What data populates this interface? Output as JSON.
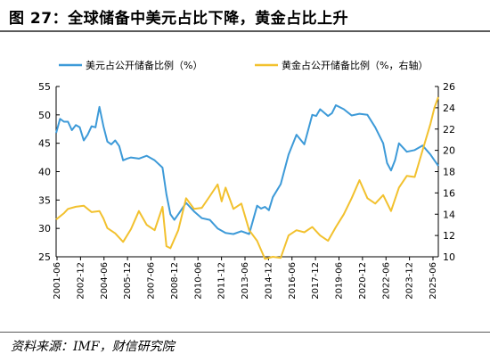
{
  "figure": {
    "title": "图 27：全球储备中美元占比下降，黄金占比上升",
    "source": "资料来源：IMF，财信研究院"
  },
  "chart_data": {
    "type": "line",
    "legend_position": "top",
    "grid": false,
    "x_tick_labels": [
      "2001-06",
      "2002-12",
      "2004-06",
      "2005-12",
      "2007-06",
      "2008-12",
      "2010-06",
      "2011-12",
      "2013-06",
      "2014-12",
      "2016-06",
      "2017-12",
      "2019-06",
      "2020-12",
      "2022-06",
      "2023-12",
      "2025-06"
    ],
    "x_range": [
      2001.25,
      2025.5
    ],
    "y_left": {
      "min": 25,
      "max": 55,
      "ticks": [
        25,
        30,
        35,
        40,
        45,
        50,
        55
      ]
    },
    "y_right": {
      "min": 10,
      "max": 26,
      "ticks": [
        10,
        12,
        14,
        16,
        18,
        20,
        22,
        24,
        26
      ]
    },
    "series": [
      {
        "name": "美元占公开储备比例（%）",
        "axis": "left",
        "color": "#3d9ad8",
        "x": [
          2001.25,
          2001.5,
          2001.75,
          2002.0,
          2002.25,
          2002.5,
          2002.75,
          2003.0,
          2003.25,
          2003.5,
          2003.75,
          2004.0,
          2004.25,
          2004.5,
          2004.75,
          2005.0,
          2005.25,
          2005.5,
          2005.75,
          2006.0,
          2006.5,
          2007.0,
          2007.5,
          2008.0,
          2008.25,
          2008.5,
          2008.75,
          2009.0,
          2009.5,
          2010.0,
          2010.5,
          2011.0,
          2011.5,
          2012.0,
          2012.5,
          2013.0,
          2013.5,
          2014.0,
          2014.25,
          2014.5,
          2014.75,
          2015.0,
          2015.5,
          2016.0,
          2016.5,
          2017.0,
          2017.5,
          2017.75,
          2018.0,
          2018.5,
          2018.75,
          2019.0,
          2019.5,
          2020.0,
          2020.5,
          2021.0,
          2021.5,
          2022.0,
          2022.25,
          2022.5,
          2022.75,
          2023.0,
          2023.5,
          2024.0,
          2024.5,
          2025.0,
          2025.25,
          2025.5
        ],
        "y": [
          46.8,
          49.3,
          48.8,
          48.8,
          47.3,
          48.2,
          47.8,
          45.5,
          46.5,
          48.0,
          47.8,
          51.4,
          48.0,
          45.3,
          44.8,
          45.5,
          44.5,
          42.0,
          42.3,
          42.5,
          42.3,
          42.8,
          42.0,
          40.7,
          36.0,
          32.5,
          31.5,
          32.5,
          34.5,
          33.0,
          31.8,
          31.5,
          30.0,
          29.2,
          29.0,
          29.5,
          29.0,
          34.0,
          33.5,
          33.8,
          33.2,
          35.5,
          37.8,
          43.0,
          46.5,
          44.8,
          50.0,
          49.8,
          51.0,
          49.8,
          50.3,
          51.7,
          51.0,
          49.9,
          50.2,
          50.0,
          47.8,
          45.0,
          41.5,
          40.2,
          42.0,
          45.0,
          43.5,
          43.8,
          44.6,
          43.0,
          42.0,
          41.0
        ]
      },
      {
        "name": "黄金占公开储备比例（%，右轴）",
        "axis": "right",
        "color": "#f2c12e",
        "x": [
          2001.25,
          2001.5,
          2001.75,
          2002.0,
          2002.5,
          2003.0,
          2003.5,
          2004.0,
          2004.25,
          2004.5,
          2005.0,
          2005.5,
          2006.0,
          2006.5,
          2007.0,
          2007.5,
          2008.0,
          2008.25,
          2008.5,
          2009.0,
          2009.5,
          2010.0,
          2010.5,
          2011.0,
          2011.5,
          2011.75,
          2012.0,
          2012.5,
          2013.0,
          2013.5,
          2014.0,
          2014.5,
          2015.0,
          2015.5,
          2016.0,
          2016.5,
          2017.0,
          2017.5,
          2018.0,
          2018.5,
          2019.0,
          2019.5,
          2020.0,
          2020.5,
          2021.0,
          2021.5,
          2022.0,
          2022.5,
          2023.0,
          2023.5,
          2024.0,
          2024.5,
          2025.0,
          2025.25,
          2025.5
        ],
        "y": [
          13.5,
          13.8,
          14.1,
          14.5,
          14.7,
          14.8,
          14.2,
          14.3,
          13.6,
          12.7,
          12.2,
          11.4,
          12.6,
          14.3,
          13.0,
          12.5,
          14.7,
          11.0,
          10.8,
          12.5,
          15.5,
          14.5,
          14.6,
          15.7,
          16.8,
          15.2,
          16.5,
          14.5,
          15.0,
          12.5,
          11.5,
          9.8,
          10.0,
          9.9,
          12.0,
          12.5,
          12.3,
          12.8,
          12.0,
          11.5,
          12.8,
          14.0,
          15.5,
          17.2,
          15.5,
          15.0,
          15.8,
          14.3,
          16.5,
          17.6,
          17.5,
          20.0,
          22.5,
          24.0,
          25.0
        ]
      }
    ]
  }
}
